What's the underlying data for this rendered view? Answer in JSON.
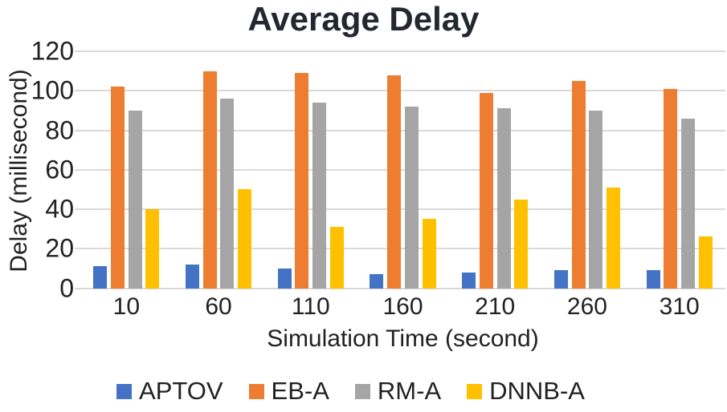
{
  "chart_data": {
    "type": "bar",
    "title": "Average Delay",
    "xlabel": "Simulation Time (second)",
    "ylabel": "Delay (millisecond)",
    "categories": [
      "10",
      "60",
      "110",
      "160",
      "210",
      "260",
      "310"
    ],
    "series": [
      {
        "name": "APTOV",
        "color": "#4472C4",
        "values": [
          11,
          12,
          10,
          7,
          8,
          9,
          9
        ]
      },
      {
        "name": "EB-A",
        "color": "#ED7D31",
        "values": [
          102,
          110,
          109,
          108,
          99,
          105,
          101
        ]
      },
      {
        "name": "RM-A",
        "color": "#A5A5A5",
        "values": [
          90,
          96,
          94,
          92,
          91,
          90,
          86
        ]
      },
      {
        "name": "DNNB-A",
        "color": "#FFC000",
        "values": [
          40,
          50,
          31,
          35,
          45,
          51,
          26
        ]
      }
    ],
    "ylim": [
      0,
      120
    ],
    "yticks": [
      0,
      20,
      40,
      60,
      80,
      100,
      120
    ],
    "grid": true,
    "legend_position": "bottom",
    "legend": [
      "APTOV",
      "EB-A",
      "RM-A",
      "DNNB-A"
    ]
  },
  "colors": {
    "gridline": "#d9d9d9",
    "text": "#212121",
    "title_text": "#23272f",
    "background": "#ffffff"
  }
}
